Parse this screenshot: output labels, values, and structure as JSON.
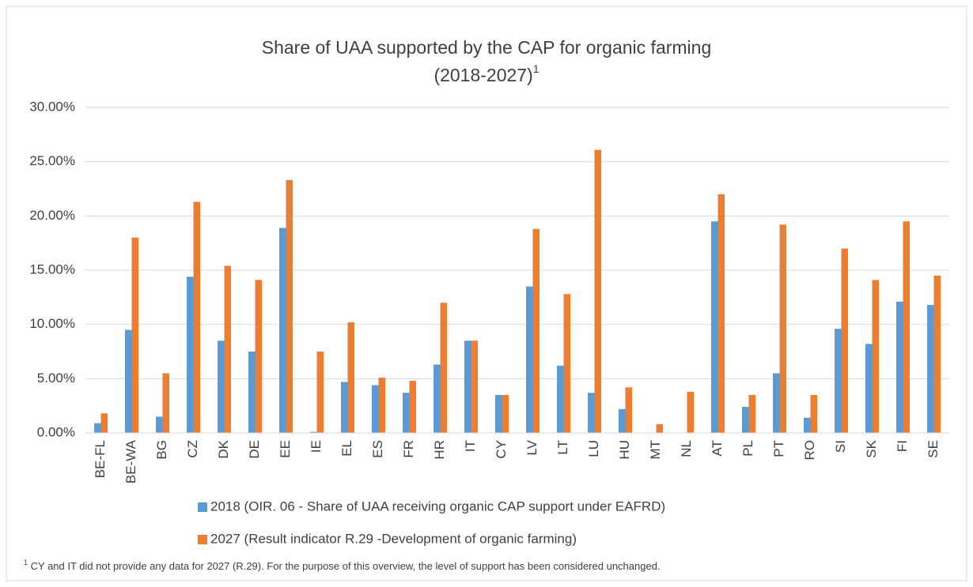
{
  "chart_data": {
    "type": "bar",
    "title": "Share of UAA supported by the CAP for organic farming",
    "subtitle": "(2018-2027)",
    "subtitle_marker": "1",
    "categories": [
      "BE-FL",
      "BE-WA",
      "BG",
      "CZ",
      "DK",
      "DE",
      "EE",
      "IE",
      "EL",
      "ES",
      "FR",
      "HR",
      "IT",
      "CY",
      "LV",
      "LT",
      "LU",
      "HU",
      "MT",
      "NL",
      "AT",
      "PL",
      "PT",
      "RO",
      "SI",
      "SK",
      "FI",
      "SE"
    ],
    "series": [
      {
        "name": "2018 (OIR. 06 -  Share of UAA receiving organic CAP support under EAFRD)",
        "color": "#5b9bd5",
        "values": [
          0.9,
          9.5,
          1.5,
          14.4,
          8.5,
          7.5,
          18.9,
          0.1,
          4.7,
          4.4,
          3.7,
          6.3,
          8.5,
          3.5,
          13.5,
          6.2,
          3.7,
          2.2,
          0,
          0,
          19.5,
          2.4,
          5.5,
          1.4,
          9.6,
          8.2,
          12.1,
          11.8
        ]
      },
      {
        "name": "2027 (Result indicator R.29 -Development of organic farming)",
        "color": "#ed7d31",
        "values": [
          1.8,
          18.0,
          5.5,
          21.3,
          15.4,
          14.1,
          23.3,
          7.5,
          10.2,
          5.1,
          4.8,
          12.0,
          8.5,
          3.5,
          18.8,
          12.8,
          26.1,
          4.2,
          0.8,
          3.8,
          22.0,
          3.5,
          19.2,
          3.5,
          17.0,
          14.1,
          19.5,
          14.5
        ]
      }
    ],
    "ylim": [
      0,
      30
    ],
    "yticks": [
      {
        "value": 0,
        "label": "0.00%"
      },
      {
        "value": 5,
        "label": "5.00%"
      },
      {
        "value": 10,
        "label": "10.00%"
      },
      {
        "value": 15,
        "label": "15.00%"
      },
      {
        "value": 20,
        "label": "20.00%"
      },
      {
        "value": 25,
        "label": "25.00%"
      },
      {
        "value": 30,
        "label": "30.00%"
      }
    ],
    "grid": true,
    "footnote": {
      "marker": "1",
      "text": " CY and IT did not provide any data for 2027 (R.29). For the purpose of this overview, the level of support has been considered unchanged."
    }
  }
}
